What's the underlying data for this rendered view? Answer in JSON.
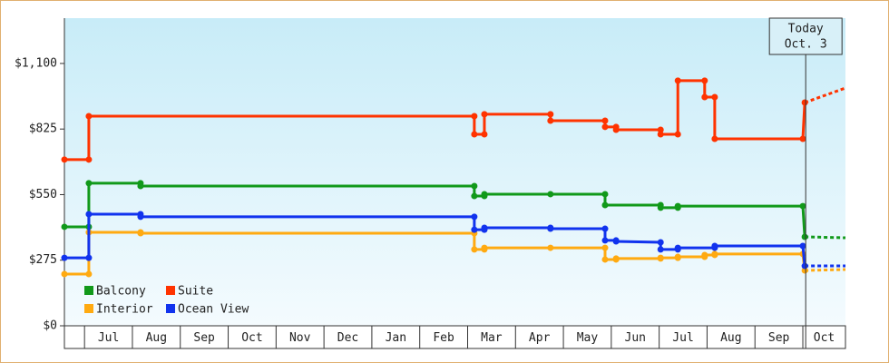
{
  "chart_data": {
    "type": "step-line",
    "xlim": [
      -0.42,
      15.89
    ],
    "ylim": [
      0,
      1290
    ],
    "yticks": [
      {
        "value": 0,
        "label": "$0"
      },
      {
        "value": 275,
        "label": "$275"
      },
      {
        "value": 550,
        "label": "$550"
      },
      {
        "value": 825,
        "label": "$825"
      },
      {
        "value": 1100,
        "label": "$1,100"
      }
    ],
    "xticks": [
      {
        "value": 0,
        "label": "Jul"
      },
      {
        "value": 1,
        "label": "Aug"
      },
      {
        "value": 2,
        "label": "Sep"
      },
      {
        "value": 3,
        "label": "Oct"
      },
      {
        "value": 4,
        "label": "Nov"
      },
      {
        "value": 5,
        "label": "Dec"
      },
      {
        "value": 6,
        "label": "Jan"
      },
      {
        "value": 7,
        "label": "Feb"
      },
      {
        "value": 8,
        "label": "Mar"
      },
      {
        "value": 9,
        "label": "Apr"
      },
      {
        "value": 10,
        "label": "May"
      },
      {
        "value": 11,
        "label": "Jun"
      },
      {
        "value": 12,
        "label": "Jul"
      },
      {
        "value": 13,
        "label": "Aug"
      },
      {
        "value": 14,
        "label": "Sep"
      },
      {
        "value": 15,
        "label": "Oct"
      }
    ],
    "today": {
      "x": 15.06,
      "label": "Today",
      "date": "Oct. 3"
    },
    "series": [
      {
        "name": "Balcony",
        "color": "#11991a",
        "x": [
          -0.42,
          0.09,
          0.09,
          1.17,
          1.17,
          8.14,
          8.14,
          8.35,
          8.35,
          9.73,
          10.87,
          10.87,
          12.03,
          12.03,
          12.39,
          12.39,
          15.0,
          15.04
        ],
        "values": [
          415,
          415,
          598,
          598,
          586,
          586,
          544,
          544,
          552,
          552,
          552,
          506,
          506,
          495,
          495,
          502,
          502,
          373
        ],
        "forecast": {
          "x": [
            15.04,
            15.89
          ],
          "values": [
            373,
            369
          ]
        }
      },
      {
        "name": "Suite",
        "color": "#ff3300",
        "x": [
          -0.42,
          0.09,
          0.09,
          8.14,
          8.14,
          8.35,
          8.35,
          9.73,
          9.73,
          10.87,
          10.87,
          11.1,
          11.1,
          12.03,
          12.03,
          12.39,
          12.39,
          12.95,
          12.95,
          13.16,
          13.16,
          15.0,
          15.04
        ],
        "values": [
          697,
          697,
          879,
          879,
          803,
          803,
          887,
          887,
          860,
          860,
          834,
          834,
          822,
          822,
          803,
          803,
          1028,
          1028,
          959,
          959,
          784,
          784,
          936
        ],
        "forecast": {
          "x": [
            15.04,
            15.89
          ],
          "values": [
            936,
            997
          ]
        }
      },
      {
        "name": "Interior",
        "color": "#ffaa11",
        "x": [
          -0.42,
          0.09,
          0.09,
          1.17,
          1.17,
          8.14,
          8.14,
          8.35,
          8.35,
          9.73,
          10.87,
          10.87,
          11.1,
          11.1,
          12.03,
          12.03,
          12.39,
          12.39,
          12.95,
          12.95,
          13.16,
          13.16,
          15.0,
          15.04
        ],
        "values": [
          217,
          217,
          392,
          392,
          388,
          388,
          320,
          320,
          327,
          327,
          327,
          278,
          278,
          282,
          282,
          285,
          285,
          289,
          289,
          297,
          297,
          301,
          301,
          232
        ],
        "forecast": {
          "x": [
            15.04,
            15.89
          ],
          "values": [
            232,
            236
          ]
        }
      },
      {
        "name": "Ocean View",
        "color": "#1133ee",
        "x": [
          -0.42,
          0.09,
          0.09,
          1.17,
          1.17,
          8.14,
          8.14,
          8.35,
          8.35,
          9.73,
          9.73,
          10.87,
          10.87,
          11.1,
          11.1,
          12.03,
          12.03,
          12.39,
          12.39,
          13.16,
          13.16,
          15.0,
          15.04
        ],
        "values": [
          285,
          285,
          468,
          468,
          457,
          457,
          403,
          403,
          411,
          411,
          407,
          407,
          358,
          358,
          354,
          350,
          320,
          320,
          327,
          327,
          335,
          335,
          251
        ],
        "forecast": {
          "x": [
            15.04,
            15.89
          ],
          "values": [
            251,
            251
          ]
        }
      }
    ]
  }
}
